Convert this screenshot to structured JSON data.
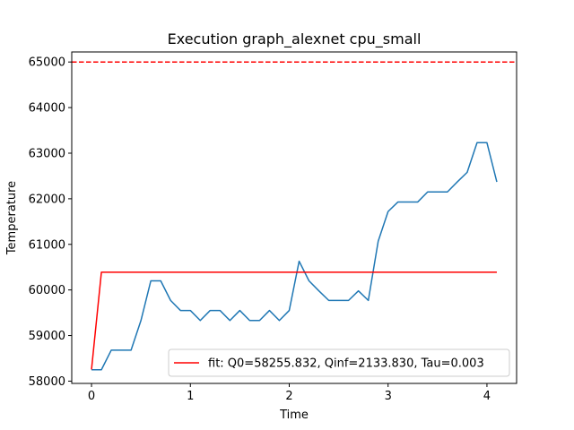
{
  "chart_data": {
    "type": "line",
    "title": "Execution graph_alexnet cpu_small",
    "xlabel": "Time",
    "ylabel": "Temperature",
    "xlim": [
      -0.2,
      4.3
    ],
    "ylim": [
      57950,
      65220
    ],
    "xticks": [
      0,
      1,
      2,
      3,
      4
    ],
    "yticks": [
      58000,
      59000,
      60000,
      61000,
      62000,
      63000,
      64000,
      65000
    ],
    "grid": false,
    "legend": {
      "placement": "lower-right"
    },
    "series": [
      {
        "color": "#1f77b4",
        "style": "solid",
        "x": [
          0,
          0.1,
          0.2,
          0.3,
          0.4,
          0.5,
          0.6,
          0.7,
          0.8,
          0.9,
          1.0,
          1.1,
          1.2,
          1.3,
          1.4,
          1.5,
          1.6,
          1.7,
          1.8,
          1.9,
          2.0,
          2.1,
          2.2,
          2.3,
          2.4,
          2.5,
          2.6,
          2.7,
          2.8,
          2.9,
          3.0,
          3.1,
          3.2,
          3.3,
          3.4,
          3.5,
          3.6,
          3.7,
          3.8,
          3.9,
          4.0,
          4.1
        ],
        "y": [
          58250,
          58250,
          58680,
          58680,
          58680,
          59330,
          60200,
          60200,
          59770,
          59550,
          59550,
          59330,
          59550,
          59550,
          59330,
          59550,
          59330,
          59330,
          59550,
          59330,
          59550,
          60630,
          60200,
          59980,
          59770,
          59770,
          59770,
          59980,
          59770,
          61070,
          61720,
          61930,
          61930,
          61930,
          62150,
          62150,
          62150,
          62370,
          62580,
          63230,
          63230,
          62370
        ]
      },
      {
        "name": "fit: Q0=58255.832, Qinf=2133.830, Tau=0.003",
        "color": "#ff0000",
        "style": "solid",
        "x": [
          0,
          0.1,
          4.1
        ],
        "y": [
          58256,
          60390,
          60390
        ]
      },
      {
        "color": "#ff0000",
        "style": "dashed",
        "x": [
          -0.2,
          4.3
        ],
        "y": [
          65000,
          65000
        ]
      }
    ]
  }
}
